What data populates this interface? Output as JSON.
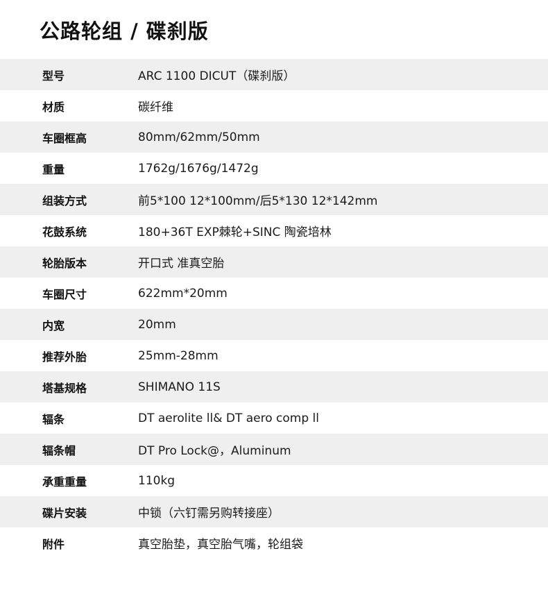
{
  "title": "公路轮组 / 碟刹版",
  "specs": [
    {
      "label": "型号",
      "value": "ARC 1100 DICUT（碟刹版）"
    },
    {
      "label": "材质",
      "value": "碳纤维"
    },
    {
      "label": "车圈框高",
      "value": "80mm/62mm/50mm"
    },
    {
      "label": "重量",
      "value": "1762g/1676g/1472g"
    },
    {
      "label": "组装方式",
      "value": "前5*100 12*100mm/后5*130 12*142mm"
    },
    {
      "label": "花鼓系统",
      "value": "180+36T EXP棘轮+SINC 陶瓷培林"
    },
    {
      "label": "轮胎版本",
      "value": "开口式 准真空胎"
    },
    {
      "label": "车圈尺寸",
      "value": "622mm*20mm"
    },
    {
      "label": "内宽",
      "value": "20mm"
    },
    {
      "label": "推荐外胎",
      "value": "25mm-28mm"
    },
    {
      "label": "塔基规格",
      "value": "SHIMANO 11S"
    },
    {
      "label": "辐条",
      "value": "DT aerolite ll& DT aero comp ll"
    },
    {
      "label": "辐条帽",
      "value": "DT Pro Lock@，Aluminum"
    },
    {
      "label": "承重重量",
      "value": "110kg"
    },
    {
      "label": "碟片安装",
      "value": "中锁（六钉需另购转接座）"
    },
    {
      "label": "附件",
      "value": "真空胎垫，真空胎气嘴，轮组袋"
    }
  ],
  "colors": {
    "stripe": "#efefef",
    "text": "#111111"
  }
}
